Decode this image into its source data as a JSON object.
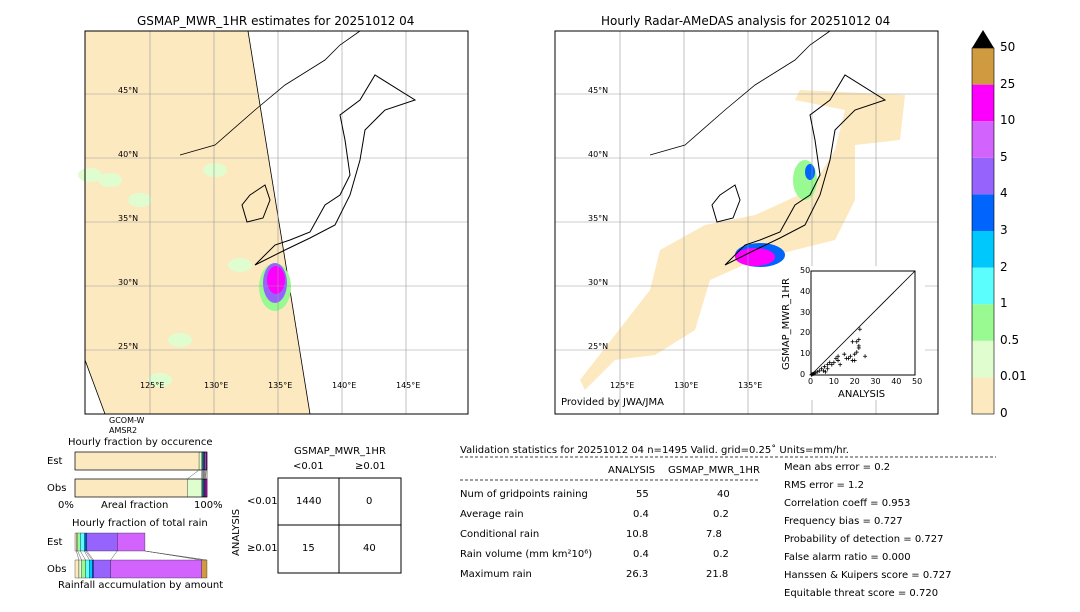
{
  "left_map": {
    "title": "GSMAP_MWR_1HR estimates for 20251012 04",
    "satellite_label_1": "GCOM-W",
    "satellite_label_2": "AMSR2"
  },
  "right_map": {
    "title": "Hourly Radar-AMeDAS analysis for 20251012 04",
    "credit": "Provided by JWA/JMA"
  },
  "lat_labels": [
    "45°N",
    "40°N",
    "35°N",
    "30°N",
    "25°N"
  ],
  "lon_labels": [
    "125°E",
    "130°E",
    "135°E",
    "140°E",
    "145°E"
  ],
  "colorbar": {
    "ticks": [
      "0",
      "0.01",
      "0.5",
      "1",
      "2",
      "3",
      "4",
      "5",
      "10",
      "25",
      "50"
    ],
    "colors": [
      "#fde9c0",
      "#e0fdd0",
      "#98fa90",
      "#5cfdfd",
      "#00c8fd",
      "#0064fd",
      "#9664fd",
      "#d264fd",
      "#fd00fd",
      "#cf9a40"
    ],
    "extend_color": "#000000"
  },
  "chart_data": [
    {
      "type": "scatter",
      "xlabel": "ANALYSIS",
      "ylabel": "GSMAP_MWR_1HR",
      "xlim": [
        0,
        50
      ],
      "ylim": [
        0,
        50
      ],
      "ticks": [
        "0",
        "10",
        "20",
        "30",
        "40",
        "50"
      ],
      "diagonal": true,
      "points": [
        [
          0.2,
          0.1
        ],
        [
          0.5,
          0.3
        ],
        [
          1,
          0.5
        ],
        [
          1.5,
          0.8
        ],
        [
          2,
          1
        ],
        [
          3,
          1.5
        ],
        [
          4,
          2
        ],
        [
          5,
          3
        ],
        [
          6,
          2
        ],
        [
          6.5,
          4
        ],
        [
          7,
          1.5
        ],
        [
          8,
          3
        ],
        [
          8,
          5
        ],
        [
          9,
          6
        ],
        [
          10,
          5
        ],
        [
          11,
          6
        ],
        [
          12,
          8
        ],
        [
          13,
          7
        ],
        [
          13,
          9
        ],
        [
          14,
          5
        ],
        [
          16,
          10
        ],
        [
          17,
          8
        ],
        [
          18,
          8
        ],
        [
          19,
          9
        ],
        [
          20,
          7
        ],
        [
          20,
          16
        ],
        [
          21,
          10
        ],
        [
          21,
          7
        ],
        [
          22,
          16
        ],
        [
          22,
          11
        ],
        [
          23,
          13
        ],
        [
          23,
          14
        ],
        [
          23,
          17
        ],
        [
          23.5,
          22
        ],
        [
          26,
          9
        ]
      ]
    },
    {
      "type": "bar",
      "title": "Hourly fraction by occurence",
      "xlabel": "Areal fraction",
      "xmin_label": "0%",
      "xmax_label": "100%",
      "rows": [
        "Est",
        "Obs"
      ],
      "segments": {
        "Est": [
          0.94,
          0.02,
          0.005,
          0.005,
          0.005,
          0.005,
          0.005,
          0.008,
          0.007,
          0
        ],
        "Obs": [
          0.85,
          0.11,
          0.005,
          0.005,
          0.005,
          0.005,
          0.005,
          0.003,
          0.012,
          0
        ]
      }
    },
    {
      "type": "bar",
      "title": "Hourly fraction of total rain",
      "xlabel": "Rainfall accumulation by amount",
      "rows": [
        "Est",
        "Obs"
      ],
      "segments": {
        "Est": [
          0.01,
          0.01,
          0.02,
          0.03,
          0.01,
          0.01,
          0.23,
          0.21,
          0,
          0
        ],
        "Obs": [
          0.03,
          0.02,
          0.03,
          0.03,
          0.02,
          0.01,
          0.13,
          0.69,
          0,
          0.04
        ]
      }
    },
    {
      "type": "table",
      "title": "GSMAP_MWR_1HR",
      "col_headers": [
        "<0.01",
        "≥0.01"
      ],
      "row_title": "ANALYSIS",
      "row_headers": [
        "<0.01",
        "≥0.01"
      ],
      "cells": [
        [
          "1440",
          "0"
        ],
        [
          "15",
          "40"
        ]
      ]
    }
  ],
  "stats": {
    "header": "Validation statistics for 20251012 04  n=1495 Valid. grid=0.25˚ Units=mm/hr.",
    "col_headers": [
      "ANALYSIS",
      "GSMAP_MWR_1HR"
    ],
    "rows": [
      {
        "label": "Num of gridpoints raining",
        "a": "55",
        "b": "40"
      },
      {
        "label": "Average rain",
        "a": "0.4",
        "b": "0.2"
      },
      {
        "label": "Conditional rain",
        "a": "10.8",
        "b": "7.8"
      },
      {
        "label": "Rain volume (mm km²10⁶)",
        "a": "0.4",
        "b": "0.2"
      },
      {
        "label": "Maximum rain",
        "a": "26.3",
        "b": "21.8"
      }
    ],
    "scores": [
      "Mean abs error =    0.2",
      "RMS error =    1.2",
      "Correlation coeff =  0.953",
      "Frequency bias =  0.727",
      "Probability of detection =  0.727",
      "False alarm ratio =  0.000",
      "Hanssen & Kuipers score =  0.727",
      "Equitable threat score =  0.720"
    ]
  }
}
